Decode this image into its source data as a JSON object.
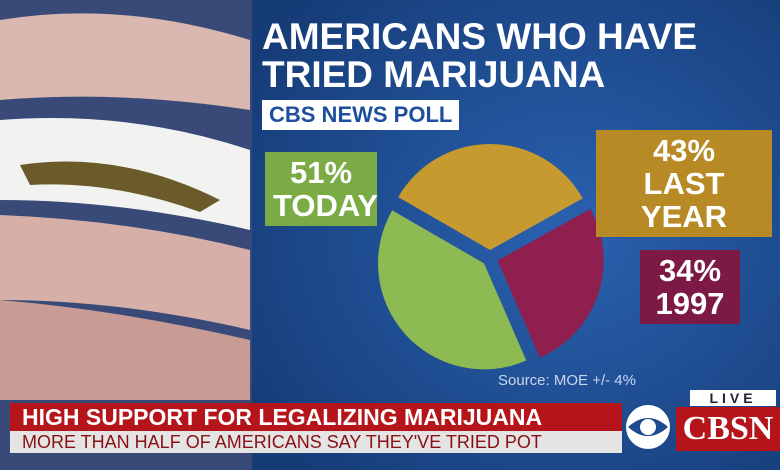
{
  "chart_data": {
    "type": "pie",
    "title": "AMERICANS WHO HAVE TRIED MARIJUANA",
    "subtitle": "CBS NEWS POLL",
    "source": "Source: MOE +/- 4%",
    "categories": [
      "TODAY",
      "LAST YEAR",
      "1997"
    ],
    "values": [
      51,
      43,
      34
    ],
    "value_labels": [
      "51%",
      "43%",
      "34%"
    ],
    "colors": [
      "#8dba52",
      "#c69a2f",
      "#8e1f4f"
    ],
    "label_colors": [
      "#7aab45",
      "#b88a26",
      "#7c1a45"
    ]
  },
  "lower_third": {
    "headline": "HIGH SUPPORT FOR LEGALIZING MARIJUANA",
    "subline": "MORE THAN HALF OF AMERICANS SAY THEY'VE TRIED POT",
    "live": "LIVE",
    "network": "CBSN"
  }
}
